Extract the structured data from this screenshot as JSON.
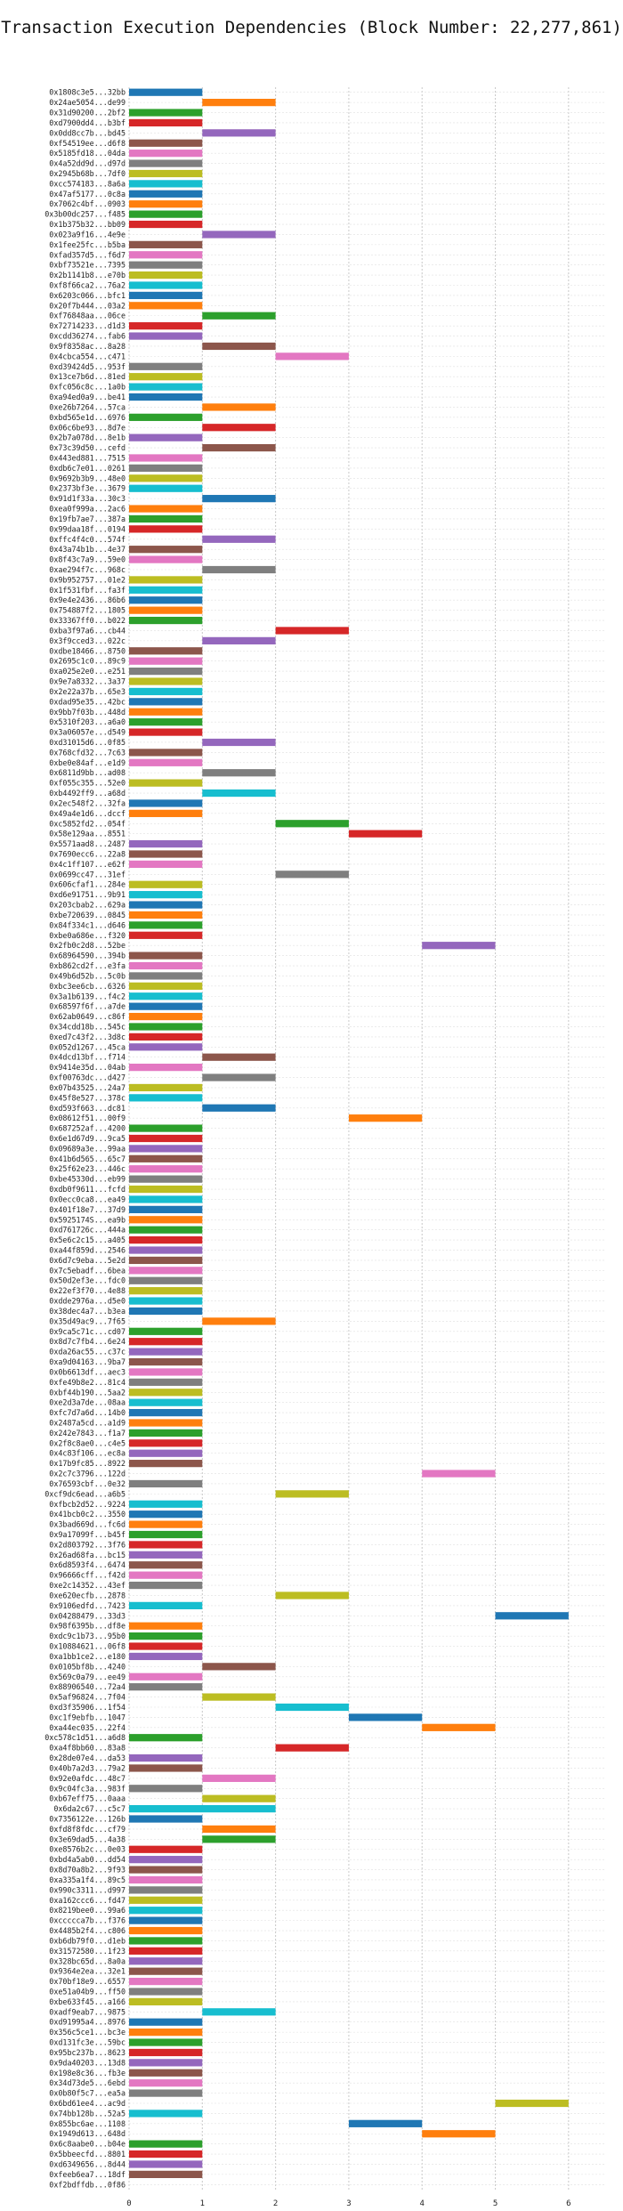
{
  "chart_data": {
    "type": "gantt",
    "title": "Transaction Execution Dependencies (Block Number: 22,277,861)",
    "xlim": [
      0,
      6.5
    ],
    "xticks": [
      0,
      1,
      2,
      3,
      4,
      5,
      6
    ],
    "grid": true,
    "palette": [
      "#1f77b4",
      "#ff7f0e",
      "#2ca02c",
      "#d62728",
      "#9467bd",
      "#8c564b",
      "#e377c2",
      "#7f7f7f",
      "#bcbd22",
      "#17becf"
    ],
    "transactions": [
      "0x1808c3e5...32bb",
      "0x24ae5054...de99",
      "0x31d90200...2bf2",
      "0xd7900dd4...b3bf",
      "0x0dd8cc7b...bd45",
      "0xf54519ee...d6f8",
      "0x5185fd18...04da",
      "0x4a52dd9d...d97d",
      "0x2945b68b...7df0",
      "0xcc574183...8a6a",
      "0x47af5177...0c8a",
      "0x7062c4bf...0903",
      "0x3b00dc257...f485",
      "0x1b375b32...bb09",
      "0x023a9f16...4e9e",
      "0x1fee25fc...b5ba",
      "0xfad357d5...f6d7",
      "0xbf73521e...7395",
      "0x2b1141b8...e70b",
      "0xf8f66ca2...76a2",
      "0x6203c066...bfc1",
      "0x20f7b444...03a2",
      "0xf76848aa...06ce",
      "0x72714233...d1d3",
      "0xcdd36274...fab6",
      "0x9f8358ac...8a28",
      "0x4cbca554...c471",
      "0xd39424d5...953f",
      "0x13ce7b6d...81ed",
      "0xfc056c8c...1a0b",
      "0xa94ed0a9...be41",
      "0xe26b7264...57ca",
      "0xbd565e1d...6976",
      "0x06c6be93...8d7e",
      "0x2b7a078d...8e1b",
      "0x73c39d50...cefd",
      "0x443ed881...7515",
      "0xdb6c7e01...0261",
      "0x9692b3b9...48e0",
      "0x2373bf3e...3679",
      "0x91d1f33a...30c3",
      "0xea0f999a...2ac6",
      "0x19fb7ae7...387a",
      "0x99daa18f...0194",
      "0xffc4f4c0...574f",
      "0x43a74b1b...4e37",
      "0x8f43c7a9...59e0",
      "0xae294f7c...968c",
      "0x9b952757...01e2",
      "0x1f531fbf...fa3f",
      "0x9e4e2436...86b6",
      "0x754887f2...1805",
      "0x33367ff0...b022",
      "0xba3f97a6...cb44",
      "0x3f9cced3...022c",
      "0xdbe18466...8750",
      "0x2695c1c0...89c9",
      "0xa025e2e0...e251",
      "0x9e7a8332...3a37",
      "0x2e22a37b...65e3",
      "0xdad95e35...42bc",
      "0x9bb7f03b...448d",
      "0x5310f203...a6a0",
      "0x3a06057e...d549",
      "0xd31015d6...0f85",
      "0x768cfd32...7c63",
      "0xbe0e84af...e1d9",
      "0x6811d9bb...ad08",
      "0xf055c355...52e0",
      "0xb4492ff9...a68d",
      "0x2ec548f2...32fa",
      "0x49a4e1d6...dccf",
      "0xc5852fd2...054f",
      "0x58e129aa...8551",
      "0x5571aad8...2487",
      "0x7690ecc6...22a8",
      "0x4c1ff107...e62f",
      "0x0699cc47...31ef",
      "0x606cfaf1...284e",
      "0xd6e91751...9b91",
      "0x203cbab2...629a",
      "0xbe720639...0845",
      "0x84f334c1...d646",
      "0xbe0a686e...f320",
      "0x2fb0c2d8...52be",
      "0x68964590...394b",
      "0xb862cd2f...e3fa",
      "0x49b6d52b...5c0b",
      "0xbc3ee6cb...6326",
      "0x3a1b6139...f4c2",
      "0x68597f6f...a7de",
      "0x62ab0649...c86f",
      "0x34cdd18b...545c",
      "0xed7c43f2...3d8c",
      "0x052d1267...45ca",
      "0x4dcd13bf...f714",
      "0x9414e35d...04ab",
      "0xf00763dc...d427",
      "0x07b43525...24a7",
      "0x45f8e527...378c",
      "0xd593f663...dc81",
      "0x08612f51...00f9",
      "0x687252af...4200",
      "0x6e1d67d9...9ca5",
      "0x09689a3e...99aa",
      "0x41b6d565...65c7",
      "0x25f62e23...446c",
      "0xbe45330d...eb99",
      "0xdb0f9611...fcfd",
      "0x0ecc0ca8...ea49",
      "0x401f18e7...37d9",
      "0x5925174S...ea9b",
      "0xd761726c...444a",
      "0x5e6c2c15...a405",
      "0xa44f859d...2546",
      "0x6d7c9eba...5e2d",
      "0x7c5ebadf...6bea",
      "0x50d2ef3e...fdc0",
      "0x22ef3f70...4e88",
      "0xdde2976a...d5e0",
      "0x38dec4a7...b3ea",
      "0x35d49ac9...7f65",
      "0x9ca5c71c...cd07",
      "0x8d7c7fb4...6e24",
      "0xda26ac55...c37c",
      "0xa9d04163...9ba7",
      "0x0b6613df...aec3",
      "0xfe49b8e2...81c4",
      "0xbf44b190...5aa2",
      "0xe2d3a7de...08aa",
      "0xfc7d7a6d...14b0",
      "0x2487a5cd...a1d9",
      "0x242e7843...f1a7",
      "0x2f8c8ae0...c4e5",
      "0x4c83f106...ec8a",
      "0x17b9fc85...8922",
      "0x2c7c3796...122d",
      "0x76593cbf...0e32",
      "0xcf9dc6ead...a6b5",
      "0xfbcb2d52...9224",
      "0x41bcb0c2...3550",
      "0x3bad669d...fc6d",
      "0x9a17099f...b45f",
      "0x2d803792...3f76",
      "0x26ad68fa...bc15",
      "0x6d8593f4...6474",
      "0x96666cff...f42d",
      "0xe2c14352...43ef",
      "0xe620ecfb...2878",
      "0x9106edfd...7423",
      "0x04288479...33d3",
      "0x98f6395b...df8e",
      "0xdc9c1b73...95b0",
      "0x10884621...06f8",
      "0xa1bb1ce2...e180",
      "0x0105bf8b...4240",
      "0x569c0a79...ee49",
      "0x88906540...72a4",
      "0x5af96824...7f04",
      "0xd3f35906...1f54",
      "0xc1f9ebfb...1047",
      "0xa44ec035...22f4",
      "0xc578c1d51...a6d8",
      "0xa4f8bb60...83a8",
      "0x28de07e4...da53",
      "0x40b7a2d3...79a2",
      "0x92e0afdc...48c7",
      "0x9c04fc3a...983f",
      "0xb67eff75...0aaa",
      "0x6da2c67...c5c7",
      "0x7356122e...126b",
      "0xfd8f8fdc...cf79",
      "0x3e69dad5...4a38",
      "0xe8576b2c...0e03",
      "0xbd4a5ab0...dd54",
      "0x8d70a8b2...9f93",
      "0xa335a1f4...89c5",
      "0x990c3311...d997",
      "0xa162ccc6...fd47",
      "0x8219bee0...99a6",
      "0xccccca7b...f376",
      "0x4485b2f4...c806",
      "0xb6db79f0...d1eb",
      "0x31572580...1f23",
      "0x328bc65d...8a0a",
      "0x9364e2ea...32e1",
      "0x70bf18e9...6557",
      "0xe51a04b9...ff50",
      "0xbe633f45...a166",
      "0xadf9eab7...9875",
      "0xd91995a4...8976",
      "0x356c5ce1...bc3e",
      "0xd131fc3e...59bc",
      "0x95bc237b...8623",
      "0x9da40203...13d8",
      "0x198e8c36...fb3e",
      "0x34d73de5...6ebd",
      "0x0b80f5c7...ea5a",
      "0x6bd61ee4...ac9d",
      "0x74bb128b...52a5",
      "0x855bc6ae...1108",
      "0x1949d613...648d",
      "0x6c8aabe0...b04e",
      "0x5bbeecfd...8801",
      "0xd6349656...8d44",
      "0xfeeb6ea7...18df",
      "0xf2bdffdb...0f86"
    ],
    "starts": [
      0,
      1,
      0,
      0,
      1,
      0,
      0,
      0,
      0,
      0,
      0,
      0,
      0,
      0,
      1,
      0,
      0,
      0,
      0,
      0,
      0,
      0,
      1,
      0,
      0,
      1,
      2,
      0,
      0,
      0,
      0,
      1,
      0,
      1,
      0,
      1,
      0,
      0,
      0,
      0,
      1,
      0,
      0,
      0,
      1,
      0,
      0,
      1,
      0,
      0,
      0,
      0,
      0,
      2,
      1,
      0,
      0,
      0,
      0,
      0,
      0,
      0,
      0,
      0,
      1,
      0,
      0,
      1,
      0,
      1,
      0,
      0,
      2,
      3,
      0,
      0,
      0,
      2,
      0,
      0,
      0,
      0,
      0,
      0,
      4,
      0,
      0,
      0,
      0,
      0,
      0,
      0,
      0,
      0,
      0,
      1,
      0,
      1,
      0,
      0,
      1,
      3,
      0,
      0,
      0,
      0,
      0,
      0,
      0,
      0,
      0,
      0,
      0,
      0,
      0,
      0,
      0,
      0,
      0,
      0,
      0,
      1,
      0,
      0,
      0,
      0,
      0,
      0,
      0,
      0,
      0,
      0,
      0,
      0,
      0,
      0,
      4,
      0,
      2,
      0,
      0,
      0,
      0,
      0,
      0,
      0,
      0,
      0,
      2,
      0,
      5,
      0,
      0,
      0,
      0,
      1,
      0,
      0,
      1,
      2,
      3,
      4,
      0,
      2,
      0,
      0,
      1,
      0,
      1,
      0,
      0,
      1,
      1,
      0,
      0,
      0,
      0,
      0,
      0,
      0,
      0,
      0,
      0,
      0,
      0,
      0,
      0,
      0,
      0,
      1,
      0,
      0,
      0,
      0,
      0,
      0,
      0,
      0,
      5,
      0,
      3,
      4,
      0,
      0,
      0,
      0
    ],
    "ends": [
      1,
      2,
      1,
      1,
      2,
      1,
      1,
      1,
      1,
      1,
      1,
      1,
      1,
      1,
      2,
      1,
      1,
      1,
      1,
      1,
      1,
      1,
      2,
      1,
      1,
      2,
      3,
      1,
      1,
      1,
      1,
      2,
      1,
      2,
      1,
      2,
      1,
      1,
      1,
      1,
      2,
      1,
      1,
      1,
      2,
      1,
      1,
      2,
      1,
      1,
      1,
      1,
      1,
      3,
      2,
      1,
      1,
      1,
      1,
      1,
      1,
      1,
      1,
      1,
      2,
      1,
      1,
      2,
      1,
      2,
      1,
      1,
      3,
      4,
      1,
      1,
      1,
      3,
      1,
      1,
      1,
      1,
      1,
      1,
      5,
      1,
      1,
      1,
      1,
      1,
      1,
      1,
      1,
      1,
      1,
      2,
      1,
      2,
      1,
      1,
      2,
      4,
      1,
      1,
      1,
      1,
      1,
      1,
      1,
      1,
      1,
      1,
      1,
      1,
      1,
      1,
      1,
      1,
      1,
      1,
      1,
      2,
      1,
      1,
      1,
      1,
      1,
      1,
      1,
      1,
      1,
      1,
      1,
      1,
      1,
      1,
      5,
      1,
      3,
      1,
      1,
      1,
      1,
      1,
      1,
      1,
      1,
      1,
      3,
      1,
      6,
      1,
      1,
      1,
      1,
      2,
      1,
      1,
      2,
      3,
      4,
      5,
      1,
      3,
      1,
      1,
      2,
      1,
      2,
      2,
      1,
      2,
      2,
      1,
      1,
      1,
      1,
      1,
      1,
      1,
      1,
      1,
      1,
      1,
      1,
      1,
      1,
      1,
      1,
      2,
      1,
      1,
      1,
      1,
      1,
      1,
      1,
      1,
      6,
      1,
      4,
      5,
      1,
      1,
      1,
      1
    ]
  }
}
